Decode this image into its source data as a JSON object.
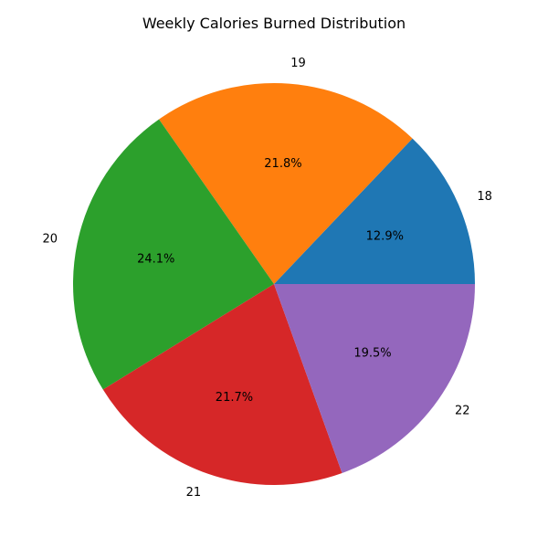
{
  "chart_data": {
    "type": "pie",
    "title": "Weekly Calories Burned Distribution",
    "categories": [
      "18",
      "19",
      "20",
      "21",
      "22"
    ],
    "percent_labels": [
      "12.9%",
      "21.8%",
      "24.1%",
      "21.7%",
      "19.5%"
    ],
    "values": [
      12.9,
      21.8,
      24.1,
      21.7,
      19.5
    ],
    "colors": [
      "#1f77b4",
      "#ff7f0e",
      "#2ca02c",
      "#d62728",
      "#9467bd"
    ],
    "start_angle": 0,
    "direction": "counterclockwise",
    "legend": "none"
  }
}
